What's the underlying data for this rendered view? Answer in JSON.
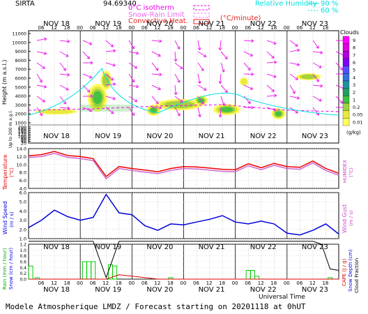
{
  "header": {
    "station": "SIRTA",
    "coords": "94.69340",
    "isotherm": "0°C isotherm",
    "snow_rain": "Snow-Rain Limit",
    "convective": "Convective Heat.",
    "convective_unit": "(°C/minute)",
    "rh_title": "Relative Humidity",
    "rh_90": "90 %",
    "rh_60": "60 %"
  },
  "days": [
    "NOV 18",
    "NOV 19",
    "NOV 20",
    "NOV 21",
    "NOV 22",
    "NOV 23"
  ],
  "hours": [
    "06",
    "12",
    "18",
    "00"
  ],
  "clouds": {
    "title": "Clouds",
    "unit": "(g/kg)",
    "scale_labels": [
      "9",
      "8",
      "7",
      "6",
      "5",
      "4",
      "3",
      "2",
      "1",
      "0.2",
      "0.05",
      "0.01"
    ],
    "scale_colors": [
      "#ff00ff",
      "#e000e0",
      "#b000e0",
      "#8000ff",
      "#5050ff",
      "#3070e0",
      "#2090a0",
      "#20a060",
      "#40c040",
      "#a0d040",
      "#e8e840",
      "#ffff60"
    ]
  },
  "panels": {
    "height_label": "Height (m a.s.l.)",
    "height_sub": "Up to 200 m a.g.l.",
    "height_ticks": [
      "11000",
      "10000",
      "9000",
      "8000",
      "7000",
      "6000",
      "5000",
      "4000",
      "3000",
      "2000",
      "1000",
      "200",
      "180",
      "160",
      "140",
      "120",
      "100",
      "80",
      "60",
      "40",
      "20"
    ],
    "temp_label": "Temperature",
    "temp_unit": "(°C)",
    "humidex_label": "HUMIDEX",
    "humidex_unit": "(°C)",
    "wind_label": "Wind Speed",
    "wind_unit": "(m / s)",
    "gust_label": "Wind Gust",
    "gust_unit": "(m / s)",
    "rain_label": "Rain (mm / hour)",
    "snow_label": "Snow (cm / hour)",
    "cape_label": "CAPE (J / g)",
    "snow_depth_label": "Snow Depth (cm)",
    "cloud_fraction_label": "Cloud Fraction"
  },
  "footer": {
    "universal_time": "Universal Time",
    "title": "Modele Atmospherique LMDZ / Forecast starting on 20201118 at 0hUT"
  },
  "chart_data": [
    {
      "type": "line",
      "title": "Temperature",
      "ylabel": "Temperature (°C)",
      "ylim": [
        4,
        14
      ],
      "yticks": [
        "14.0",
        "12.0",
        "10.0",
        "8.0",
        "6.0",
        "4.0"
      ],
      "x_hours": [
        0,
        6,
        12,
        18,
        24,
        30,
        36,
        42,
        48,
        54,
        60,
        66,
        72,
        78,
        84,
        90,
        96,
        102,
        108,
        114,
        120,
        126,
        132,
        138,
        144
      ],
      "series": [
        {
          "name": "Temperature",
          "color": "#ee0000",
          "values": [
            12.2,
            12.5,
            13.3,
            12.3,
            12.0,
            11.5,
            7.0,
            9.5,
            9.0,
            8.6,
            8.2,
            9.0,
            9.5,
            9.4,
            9.1,
            8.8,
            8.7,
            10.2,
            9.2,
            10.3,
            9.5,
            9.3,
            10.9,
            9.0,
            7.8
          ]
        },
        {
          "name": "HUMIDEX",
          "color": "#cc66cc",
          "values": [
            11.8,
            12.0,
            12.8,
            11.8,
            11.5,
            11.0,
            6.4,
            9.0,
            8.5,
            8.1,
            7.7,
            8.5,
            9.0,
            8.9,
            8.6,
            8.3,
            8.2,
            9.7,
            8.7,
            9.8,
            9.0,
            8.8,
            10.4,
            8.5,
            7.3
          ]
        }
      ]
    },
    {
      "type": "line",
      "title": "Wind Speed",
      "ylabel": "Wind Speed (m / s)",
      "ylim": [
        1,
        6
      ],
      "yticks": [
        "6.0",
        "5.0",
        "4.0",
        "3.0",
        "2.0",
        "1.0"
      ],
      "x_hours": [
        0,
        6,
        12,
        18,
        24,
        30,
        36,
        42,
        48,
        54,
        60,
        66,
        72,
        78,
        84,
        90,
        96,
        102,
        108,
        114,
        120,
        126,
        132,
        138,
        144
      ],
      "series": [
        {
          "name": "Wind Speed",
          "color": "#0000dd",
          "values": [
            2.2,
            3.0,
            4.1,
            3.4,
            3.0,
            3.3,
            5.8,
            3.8,
            3.6,
            2.4,
            1.9,
            2.6,
            2.5,
            2.8,
            3.1,
            3.5,
            2.8,
            2.6,
            2.9,
            2.6,
            1.6,
            1.4,
            1.9,
            2.6,
            1.5
          ]
        }
      ]
    },
    {
      "type": "bar",
      "title": "Rain",
      "ylabel": "Rain (mm / hour)",
      "ylim": [
        0,
        1.2
      ],
      "yticks": [
        "1.2",
        "1.0",
        "0.8",
        "0.6",
        "0.4",
        "0.2",
        "0.0"
      ],
      "x_hours": [
        1,
        4,
        26,
        28,
        30,
        38,
        40,
        66,
        102,
        104,
        106,
        140
      ],
      "values": [
        0.45,
        0.05,
        0.6,
        0.6,
        0.6,
        0.5,
        0.45,
        0.05,
        0.3,
        0.3,
        0.1,
        0.05
      ]
    },
    {
      "type": "line",
      "title": "Cloud Fraction / CAPE",
      "x_hours": [
        0,
        12,
        24,
        30,
        36,
        42,
        48,
        60,
        72,
        84,
        96,
        108,
        120,
        132,
        136,
        140,
        144
      ],
      "series": [
        {
          "name": "Cloud Fraction",
          "color": "#000000",
          "values": [
            1.3,
            1.3,
            1.3,
            1.3,
            0.05,
            1.3,
            1.3,
            1.3,
            1.3,
            1.3,
            1.3,
            1.3,
            1.3,
            1.3,
            1.2,
            0.35,
            0.3
          ]
        },
        {
          "name": "CAPE",
          "color": "#dd0000",
          "values": [
            0.0,
            0.0,
            0.0,
            0.0,
            0.0,
            0.15,
            0.1,
            0.0,
            0.0,
            0.0,
            0.0,
            0.0,
            0.0,
            0.0,
            0.0,
            0.0,
            0.0
          ]
        }
      ]
    }
  ]
}
